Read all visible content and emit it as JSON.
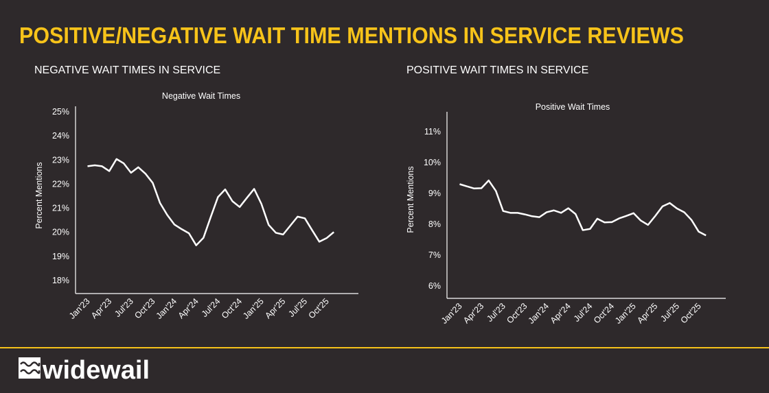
{
  "header": {
    "title": "POSITIVE/NEGATIVE WAIT TIME MENTIONS IN SERVICE REVIEWS"
  },
  "brand": {
    "logo_text": "widewail",
    "accent": "#f7c31a",
    "background": "#2e292b"
  },
  "chart_data": [
    {
      "type": "line",
      "section_title": "NEGATIVE WAIT TIMES IN SERVICE",
      "title": "Negative Wait Times",
      "ylabel": "Percent Mentions",
      "xlabel": "",
      "ylim": [
        18,
        25
      ],
      "yticks": [
        "18%",
        "19%",
        "20%",
        "21%",
        "22%",
        "23%",
        "24%",
        "25%"
      ],
      "xtick_labels": [
        "Jan'23",
        "Apr'23",
        "Jul'23",
        "Oct'23",
        "Jan'24",
        "Apr'24",
        "Jul'24",
        "Oct'24",
        "Jan'25",
        "Apr'25",
        "Jul'25",
        "Oct'25"
      ],
      "x_start": "Jan'23",
      "x_end": "Nov'25",
      "grid": false,
      "color": "#ffffff",
      "values": [
        22.74,
        22.78,
        22.74,
        22.54,
        23.04,
        22.86,
        22.47,
        22.7,
        22.43,
        22.05,
        21.22,
        20.72,
        20.32,
        20.13,
        19.96,
        19.46,
        19.77,
        20.63,
        21.46,
        21.78,
        21.29,
        21.05,
        21.43,
        21.8,
        21.18,
        20.31,
        19.98,
        19.91,
        20.28,
        20.65,
        20.58,
        20.09,
        19.61,
        19.76,
        20.01
      ]
    },
    {
      "type": "line",
      "section_title": "POSITIVE WAIT TIMES IN SERVICE",
      "title": "Positive Wait Times",
      "ylabel": "Percent Mentions",
      "xlabel": "",
      "ylim": [
        6,
        11
      ],
      "yticks": [
        "6%",
        "7%",
        "8%",
        "9%",
        "10%",
        "11%"
      ],
      "xtick_labels": [
        "Jan'23",
        "Apr'23",
        "Jul'23",
        "Oct'23",
        "Jan'24",
        "Apr'24",
        "Jul'24",
        "Oct'24",
        "Jan'25",
        "Apr'25",
        "Jul'25",
        "Oct'25"
      ],
      "x_start": "Jan'23",
      "x_end": "Nov'25",
      "grid": false,
      "color": "#ffffff",
      "values": [
        9.3,
        9.23,
        9.16,
        9.17,
        9.42,
        9.08,
        8.43,
        8.37,
        8.37,
        8.32,
        8.26,
        8.23,
        8.39,
        8.45,
        8.37,
        8.52,
        8.33,
        7.81,
        7.85,
        8.18,
        8.06,
        8.07,
        8.19,
        8.27,
        8.36,
        8.12,
        7.98,
        8.27,
        8.58,
        8.69,
        8.51,
        8.39,
        8.14,
        7.76,
        7.64
      ]
    }
  ]
}
